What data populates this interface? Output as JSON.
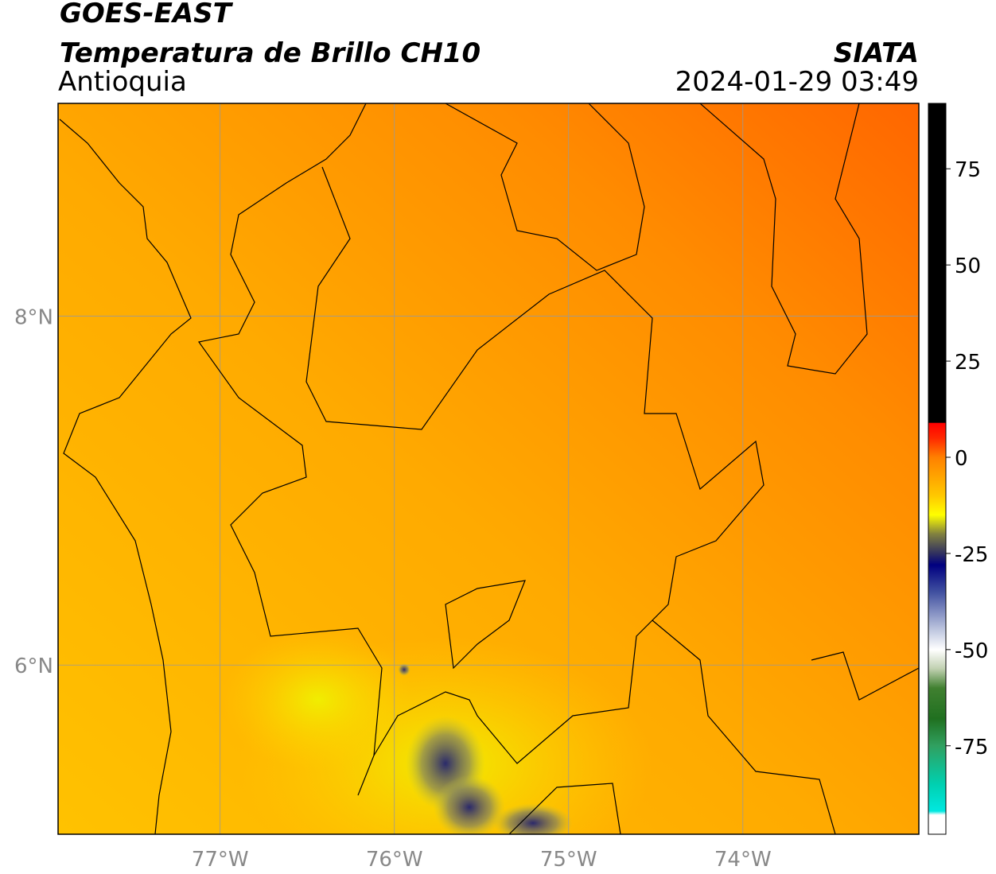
{
  "header": {
    "title": "GOES-EAST",
    "subtitle": "Temperatura de Brillo CH10",
    "region": "Antioquia",
    "source": "SIATA",
    "timestamp": "2024-01-29 03:49"
  },
  "map": {
    "xlim": [
      -77.93,
      -72.99
    ],
    "ylim": [
      5.03,
      9.22
    ],
    "xticks": [
      {
        "value": -77,
        "label": "77°W"
      },
      {
        "value": -76,
        "label": "76°W"
      },
      {
        "value": -75,
        "label": "75°W"
      },
      {
        "value": -74,
        "label": "74°W"
      }
    ],
    "yticks": [
      {
        "value": 8,
        "label": "8°N"
      },
      {
        "value": 6,
        "label": "6°N"
      }
    ],
    "grid": true
  },
  "colorbar": {
    "lim": [
      -98,
      92
    ],
    "ticks": [
      75,
      50,
      25,
      0,
      -25,
      -50,
      -75
    ],
    "stops": [
      {
        "value": 92,
        "color": "#000000"
      },
      {
        "value": 9,
        "color": "#000000"
      },
      {
        "value": 8.9,
        "color": "#ff0000"
      },
      {
        "value": 5,
        "color": "#ff2800"
      },
      {
        "value": 0,
        "color": "#ff8000"
      },
      {
        "value": -10,
        "color": "#ffc800"
      },
      {
        "value": -15,
        "color": "#ffff00"
      },
      {
        "value": -20,
        "color": "#808040"
      },
      {
        "value": -25,
        "color": "#303060"
      },
      {
        "value": -28,
        "color": "#000080"
      },
      {
        "value": -35,
        "color": "#4050a0"
      },
      {
        "value": -45,
        "color": "#c0c8e0"
      },
      {
        "value": -50,
        "color": "#ffffff"
      },
      {
        "value": -55,
        "color": "#c0d0b0"
      },
      {
        "value": -60,
        "color": "#408030"
      },
      {
        "value": -68,
        "color": "#207020"
      },
      {
        "value": -75,
        "color": "#30a060"
      },
      {
        "value": -85,
        "color": "#00d0b0"
      },
      {
        "value": -92,
        "color": "#00e8e0"
      },
      {
        "value": -93,
        "color": "#ffffff"
      },
      {
        "value": -98,
        "color": "#ffffff"
      }
    ]
  }
}
